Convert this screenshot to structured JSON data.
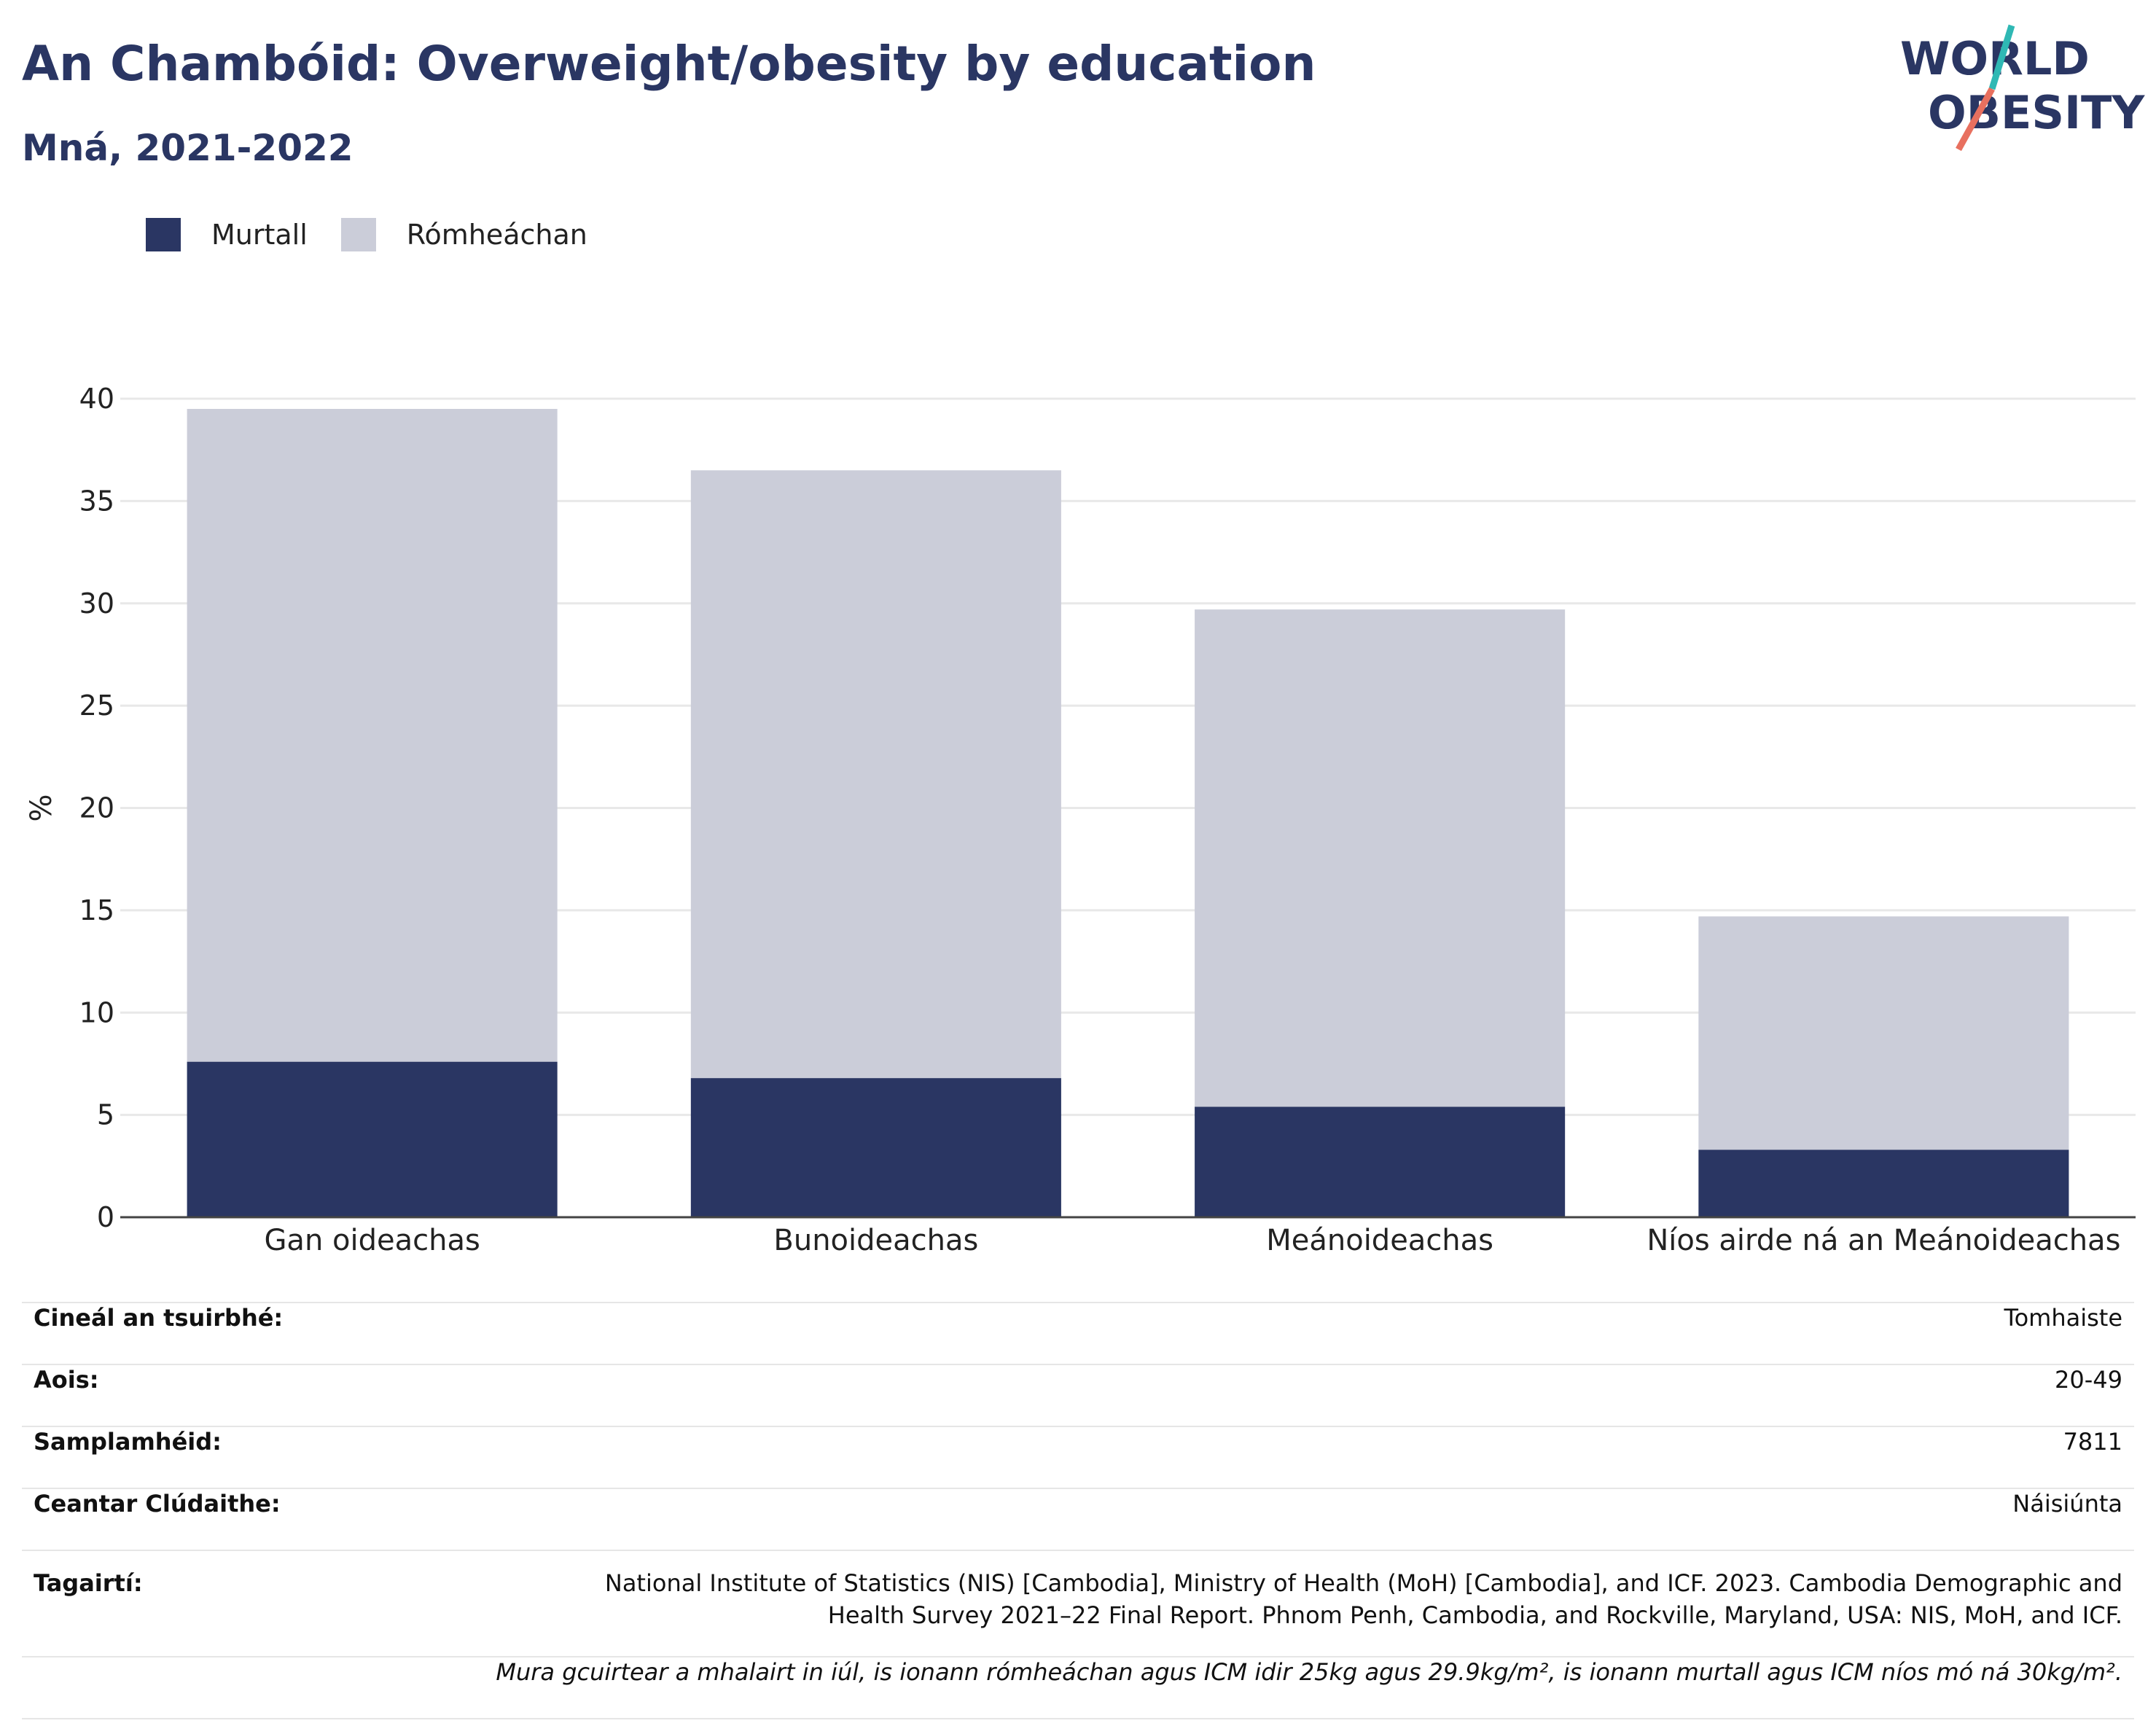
{
  "header": {
    "title": "An Chambóid: Overweight/obesity by education",
    "subtitle": "Mná, 2021-2022"
  },
  "logo": {
    "line1": "WORLD",
    "line2": "OBESITY",
    "colors": {
      "text": "#2a3663",
      "teal": "#2fb8b4",
      "coral": "#e8705f"
    }
  },
  "legend": [
    {
      "label": "Murtall",
      "color": "#2a3663"
    },
    {
      "label": "Rómheáchan",
      "color": "#cbcdd9"
    }
  ],
  "chart_data": {
    "type": "bar",
    "stacked": true,
    "categories": [
      "Gan oideachas",
      "Bunoideachas",
      "Meánoideachas",
      "Níos airde ná an Meánoideachas"
    ],
    "series": [
      {
        "name": "Murtall",
        "values": [
          7.6,
          6.8,
          5.4,
          3.3
        ],
        "color": "#2a3663"
      },
      {
        "name": "Rómheáchan",
        "values": [
          31.9,
          29.7,
          24.3,
          11.4
        ],
        "color": "#cbcdd9"
      }
    ],
    "ylabel": "%",
    "ylim": [
      0,
      40
    ],
    "yticks": [
      0,
      5,
      10,
      15,
      20,
      25,
      30,
      35,
      40
    ],
    "grid": true,
    "legend_position": "top-left"
  },
  "info": {
    "rows": [
      {
        "label": "Cineál an tsuirbhé:",
        "value": "Tomhaiste"
      },
      {
        "label": "Aois:",
        "value": "20-49"
      },
      {
        "label": "Samplamhéid:",
        "value": "7811"
      },
      {
        "label": "Ceantar Clúdaithe:",
        "value": "Náisiúnta"
      },
      {
        "label": "Tagairtí:",
        "value": "National Institute of Statistics (NIS) [Cambodia], Ministry of Health (MoH) [Cambodia], and ICF. 2023. Cambodia Demographic and Health Survey 2021–22 Final Report. Phnom Penh, Cambodia, and Rockville, Maryland, USA: NIS, MoH, and ICF."
      }
    ],
    "note": "Mura gcuirtear a mhalairt in iúl, is ionann rómheáchan agus ICM idir 25kg agus 29.9kg/m², is ionann murtall agus ICM níos mó ná 30kg/m²."
  }
}
